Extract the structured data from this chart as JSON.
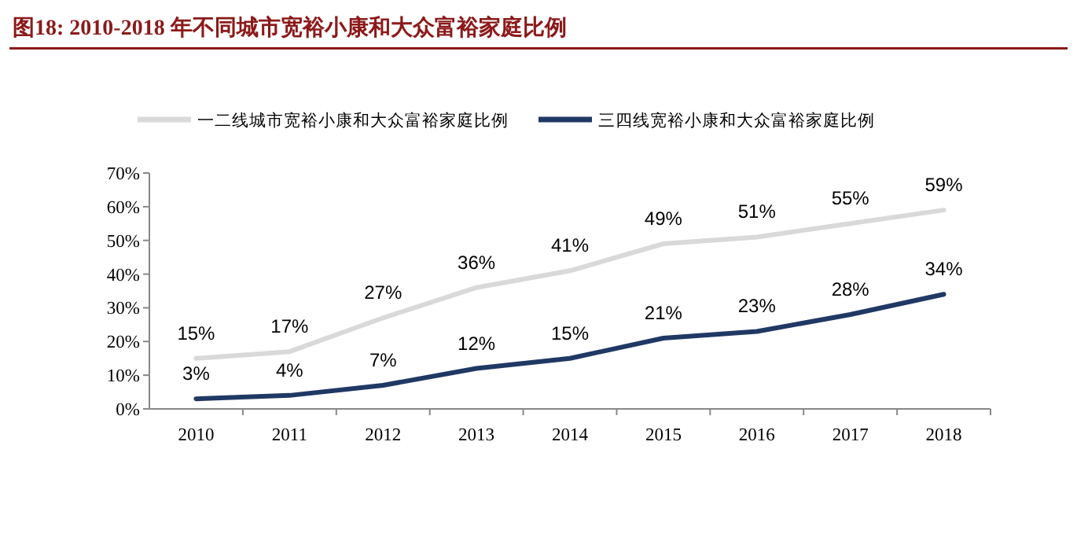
{
  "chart_data": {
    "type": "line",
    "title": "图18:  2010-2018 年不同城市宽裕小康和大众富裕家庭比例",
    "categories": [
      "2010",
      "2011",
      "2012",
      "2013",
      "2014",
      "2015",
      "2016",
      "2017",
      "2018"
    ],
    "series": [
      {
        "name": "一二线城市宽裕小康和大众富裕家庭比例",
        "color": "#d9d9d9",
        "values": [
          15,
          17,
          27,
          36,
          41,
          49,
          51,
          55,
          59
        ],
        "value_labels": [
          "15%",
          "17%",
          "27%",
          "36%",
          "41%",
          "49%",
          "51%",
          "55%",
          "59%"
        ]
      },
      {
        "name": "三四线宽裕小康和大众富裕家庭比例",
        "color": "#203864",
        "values": [
          3,
          4,
          7,
          12,
          15,
          21,
          23,
          28,
          34
        ],
        "value_labels": [
          "3%",
          "4%",
          "7%",
          "12%",
          "15%",
          "21%",
          "23%",
          "28%",
          "34%"
        ]
      }
    ],
    "ylim": [
      0,
      70
    ],
    "yticks": [
      {
        "value": 0,
        "label": "0%"
      },
      {
        "value": 10,
        "label": "10%"
      },
      {
        "value": 20,
        "label": "20%"
      },
      {
        "value": 30,
        "label": "30%"
      },
      {
        "value": 40,
        "label": "40%"
      },
      {
        "value": 50,
        "label": "50%"
      },
      {
        "value": 60,
        "label": "60%"
      },
      {
        "value": 70,
        "label": "70%"
      }
    ],
    "legend": "top",
    "grid": false,
    "marker": "none",
    "line_style": "solid"
  }
}
